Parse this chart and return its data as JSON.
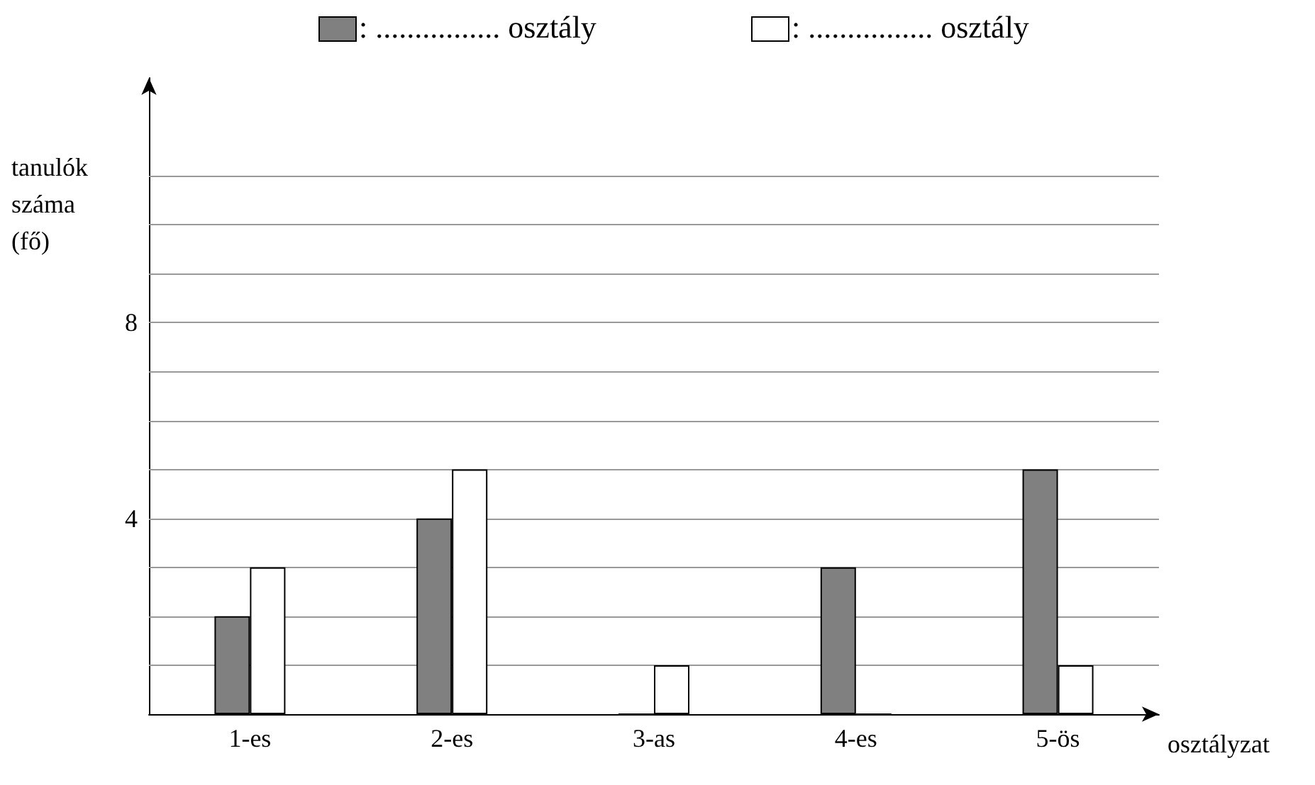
{
  "chart_data": {
    "type": "bar",
    "xlabel": "osztályzat",
    "ylabel": "tanulók\nszáma\n(fő)",
    "categories": [
      "1-es",
      "2-es",
      "3-as",
      "4-es",
      "5-ös"
    ],
    "series": [
      {
        "name": ": ................ osztály",
        "color": "#808080",
        "values": [
          2,
          4,
          0,
          3,
          5
        ]
      },
      {
        "name": ": ................ osztály",
        "color": "#ffffff",
        "values": [
          3,
          5,
          1,
          0,
          1
        ]
      }
    ],
    "ylim": [
      0,
      13
    ],
    "yticks": [
      {
        "value": 0,
        "label": null
      },
      {
        "value": 1,
        "label": null
      },
      {
        "value": 2,
        "label": null
      },
      {
        "value": 3,
        "label": null
      },
      4,
      {
        "value": 5,
        "label": null
      },
      {
        "value": 6,
        "label": null
      },
      {
        "value": 7,
        "label": null
      },
      8,
      {
        "value": 9,
        "label": null
      },
      {
        "value": 10,
        "label": null
      },
      {
        "value": 11,
        "label": null
      }
    ],
    "grid": "y",
    "legend": "top"
  }
}
